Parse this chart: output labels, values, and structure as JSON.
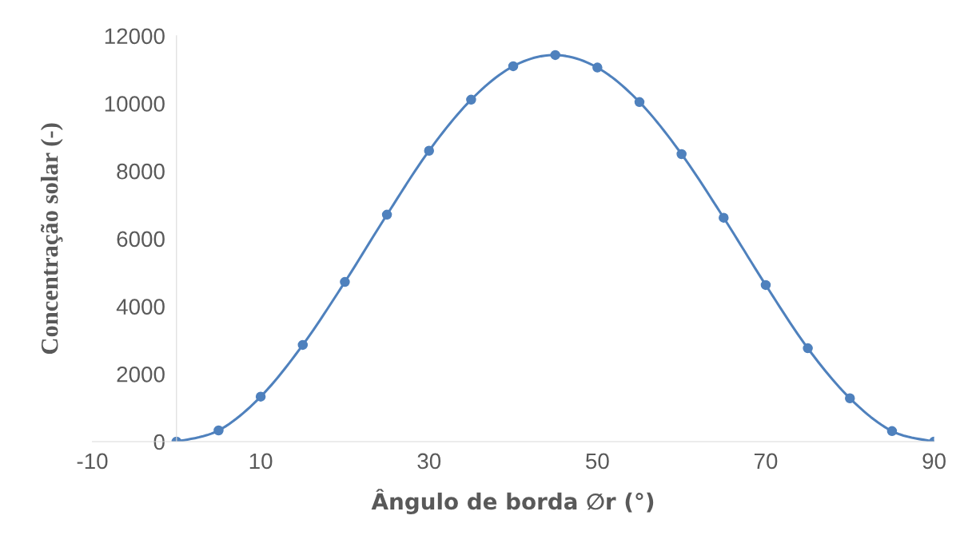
{
  "chart_data": {
    "type": "line",
    "xlabel": "Ângulo de borda ∅r (°)",
    "ylabel": "Concentração solar (-)",
    "x": [
      0,
      5,
      10,
      15,
      20,
      25,
      30,
      35,
      40,
      45,
      50,
      55,
      60,
      65,
      70,
      75,
      80,
      85,
      90
    ],
    "series": [
      {
        "color": "#4f81bd",
        "values": [
          0,
          330,
          1330,
          2860,
          4720,
          6710,
          8600,
          10110,
          11100,
          11430,
          11060,
          10040,
          8500,
          6620,
          4630,
          2760,
          1280,
          310,
          0
        ]
      }
    ],
    "xlim": [
      -10,
      90
    ],
    "xticks": [
      -10,
      10,
      30,
      50,
      70,
      90
    ],
    "ylim": [
      0,
      12000
    ],
    "yticks": [
      0,
      2000,
      4000,
      6000,
      8000,
      10000,
      12000
    ],
    "grid": false,
    "marker": "circle",
    "line_style": "solid"
  }
}
